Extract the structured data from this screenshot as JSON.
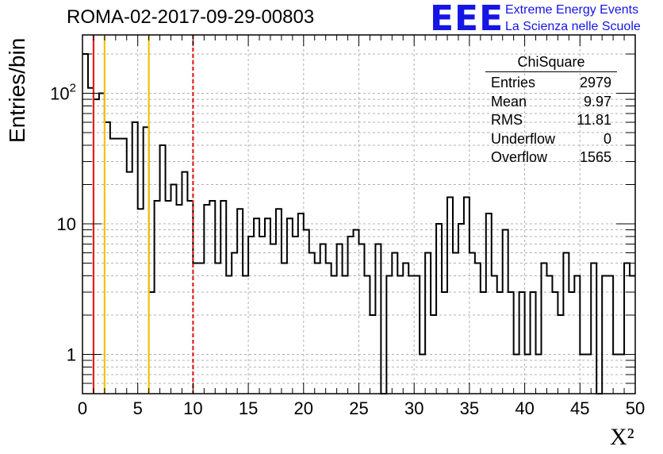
{
  "title": "ROMA-02-2017-09-29-00803",
  "logo": {
    "mark": "EEE",
    "line1": "Extreme Energy Events",
    "line2": "La Scienza nelle Scuole",
    "color": "#1515e6"
  },
  "stats": {
    "title": "ChiSquare",
    "rows": [
      {
        "label": "Entries",
        "value": "2979"
      },
      {
        "label": "Mean",
        "value": "9.97"
      },
      {
        "label": "RMS",
        "value": "11.81"
      },
      {
        "label": "Underflow",
        "value": "0"
      },
      {
        "label": "Overflow",
        "value": "1565"
      }
    ]
  },
  "chart_data": {
    "type": "bar",
    "title": "ROMA-02-2017-09-29-00803",
    "xlabel": "X²",
    "ylabel": "Entries/bin",
    "xlim": [
      0,
      50
    ],
    "ylim": [
      0.5,
      280
    ],
    "yscale": "log",
    "bin_width": 0.5,
    "grid": true,
    "x_ticks": [
      "0",
      "5",
      "10",
      "15",
      "20",
      "25",
      "30",
      "35",
      "40",
      "45",
      "50"
    ],
    "y_ticks": [
      {
        "value": 1,
        "label": "1"
      },
      {
        "value": 10,
        "label": "10"
      },
      {
        "value": 100,
        "label": "10²"
      }
    ],
    "values": [
      200,
      110,
      90,
      100,
      60,
      45,
      45,
      45,
      25,
      60,
      13,
      55,
      3,
      15,
      40,
      15,
      20,
      14,
      25,
      15,
      5,
      5,
      14,
      15,
      5,
      15,
      4,
      6,
      13,
      4,
      8,
      11,
      8,
      11,
      7,
      13,
      5,
      11,
      8,
      12,
      9,
      6,
      5,
      7,
      5,
      4,
      7,
      4,
      8,
      9,
      7,
      4,
      2,
      7,
      0.4,
      4,
      6,
      4,
      5,
      4,
      4,
      1,
      6,
      2,
      10,
      3,
      16,
      6,
      10,
      16,
      6,
      5,
      3,
      12,
      4,
      3,
      9,
      3,
      1,
      3,
      1,
      3,
      1,
      5,
      4,
      3,
      2,
      6,
      3,
      4,
      1,
      1,
      5,
      0.4,
      4,
      4,
      1,
      1,
      5,
      4
    ],
    "vertical_lines": [
      {
        "x": 1,
        "color": "#e02020",
        "style": "solid"
      },
      {
        "x": 2,
        "color": "#f2c20c",
        "style": "solid"
      },
      {
        "x": 6,
        "color": "#f2c20c",
        "style": "solid"
      },
      {
        "x": 10,
        "color": "#e02020",
        "style": "dashed"
      }
    ]
  }
}
